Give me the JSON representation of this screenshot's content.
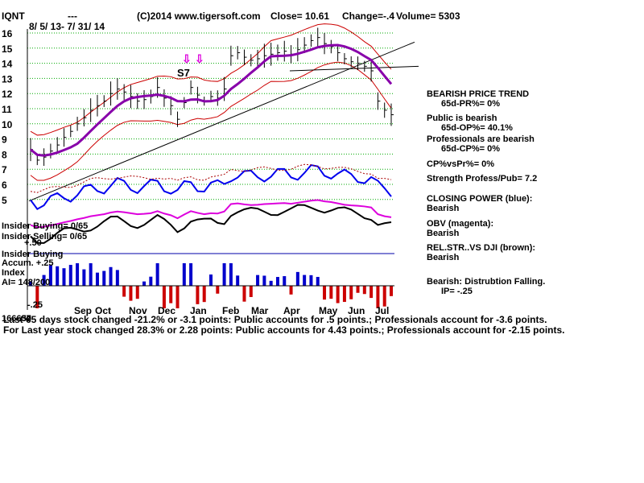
{
  "header": {
    "ticker": "IQNT",
    "dashes": "---",
    "site": "(C)2014 www.tigersoft.com",
    "close_label": "Close= 10.61",
    "change": "Change=-.4",
    "volume": "Volume= 5303",
    "date_range": "8/ 5/ 13- 7/ 31/ 14"
  },
  "signal_label": "S7",
  "left_labels": {
    "insider_buying": "Insider Buying= 0/65",
    "insider_selling": "Insider Selling= 0/65",
    "plus50": "+.50",
    "insider_buying2": "Insider Buying",
    "accum": "Accum. +.25",
    "index": "Index",
    "ai": "AI= 148/200",
    "minus25": "-.25",
    "minus50": "-.50",
    "base": "166637"
  },
  "right_panel": {
    "l1": "BEARISH PRICE TREND",
    "l2": "65d-PR%= 0%",
    "l3": "Public is bearish",
    "l4": "65d-OP%= 40.1%",
    "l5": "Professionals are bearish",
    "l6": "65d-CP%= 0%",
    "l7": "CP%vsPr%=  0%",
    "l8": "Strength Profess/Pub= 7.2",
    "l9": "CLOSING POWER (blue):",
    "l10": "Bearish",
    "l11": "OBV (magenta):",
    "l12": "Bearish",
    "l13": "REL.STR..VS DJI (brown):",
    "l14": "Bearish",
    "l15": "Bearish: Distrubtion Falling.",
    "l16": "IP= -.25"
  },
  "footer": {
    "line1": "Last 65 days stock changed -21.2% or -3.1 points:  Public accounts for  .5 points.;  Professionals account for -3.6 points.",
    "line2": "For Last year stock changed  28.3% or  2.28 points:  Public accounts for  4.43 points.;  Professionals account for -2.15 points."
  },
  "colors": {
    "price": "#000000",
    "bands": "#cc0000",
    "ma": "#8800aa",
    "closing_power": "#0000ee",
    "obv": "#dd00dd",
    "rel_str": "#aa0000",
    "grid": "#00aa00",
    "accum_pos": "#0000cc",
    "accum_neg": "#cc0000"
  },
  "chart_data": {
    "type": "line",
    "y_ticks": [
      "16",
      "15",
      "14",
      "13",
      "12",
      "11",
      "10",
      "9",
      "8",
      "7",
      "6",
      "5"
    ],
    "ylim": [
      4.5,
      16.3
    ],
    "months": [
      "Sep",
      "Oct",
      "Nov",
      "Dec",
      "Jan",
      "Feb",
      "Mar",
      "Apr",
      "May",
      "Jun",
      "Jul"
    ],
    "price_series": {
      "name": "IQNT",
      "values": [
        8.3,
        7.6,
        7.8,
        8.2,
        8.6,
        9.1,
        9.5,
        10.0,
        10.4,
        10.9,
        11.2,
        11.5,
        12.0,
        12.3,
        12.1,
        11.8,
        11.5,
        11.6,
        11.8,
        12.4,
        11.7,
        11.2,
        10.3,
        11.4,
        12.4,
        11.9,
        11.5,
        11.8,
        11.7,
        12.3,
        14.5,
        14.7,
        14.4,
        14.2,
        14.3,
        14.5,
        14.6,
        14.7,
        14.8,
        14.6,
        14.9,
        15.2,
        15.5,
        15.7,
        15.3,
        15.1,
        14.7,
        14.3,
        14.1,
        14.0,
        13.8,
        13.5,
        11.5,
        10.9,
        10.6
      ]
    }
  }
}
